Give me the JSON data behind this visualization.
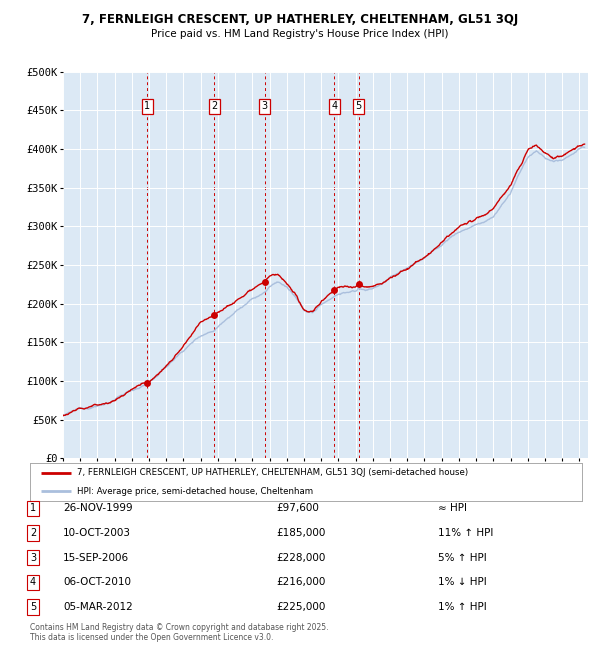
{
  "title_line1": "7, FERNLEIGH CRESCENT, UP HATHERLEY, CHELTENHAM, GL51 3QJ",
  "title_line2": "Price paid vs. HM Land Registry's House Price Index (HPI)",
  "plot_bg_color": "#dce9f5",
  "fig_bg_color": "#ffffff",
  "red_line_color": "#cc0000",
  "blue_line_color": "#aabfdd",
  "dot_color": "#cc0000",
  "vline_color": "#cc0000",
  "ylim": [
    0,
    500000
  ],
  "yticks": [
    0,
    50000,
    100000,
    150000,
    200000,
    250000,
    300000,
    350000,
    400000,
    450000,
    500000
  ],
  "ytick_labels": [
    "£0",
    "£50K",
    "£100K",
    "£150K",
    "£200K",
    "£250K",
    "£300K",
    "£350K",
    "£400K",
    "£450K",
    "£500K"
  ],
  "transactions": [
    {
      "num": 1,
      "date_num": 1999.9,
      "label": "26-NOV-1999",
      "price": 97600,
      "hpi_note": "≈ HPI"
    },
    {
      "num": 2,
      "date_num": 2003.78,
      "label": "10-OCT-2003",
      "price": 185000,
      "hpi_note": "11% ↑ HPI"
    },
    {
      "num": 3,
      "date_num": 2006.71,
      "label": "15-SEP-2006",
      "price": 228000,
      "hpi_note": "5% ↑ HPI"
    },
    {
      "num": 4,
      "date_num": 2010.76,
      "label": "06-OCT-2010",
      "price": 216000,
      "hpi_note": "1% ↓ HPI"
    },
    {
      "num": 5,
      "date_num": 2012.17,
      "label": "05-MAR-2012",
      "price": 225000,
      "hpi_note": "1% ↑ HPI"
    }
  ],
  "legend_line1": "7, FERNLEIGH CRESCENT, UP HATHERLEY, CHELTENHAM, GL51 3QJ (semi-detached house)",
  "legend_line2": "HPI: Average price, semi-detached house, Cheltenham",
  "footer_line1": "Contains HM Land Registry data © Crown copyright and database right 2025.",
  "footer_line2": "This data is licensed under the Open Government Licence v3.0.",
  "xmin": 1995.0,
  "xmax": 2025.5,
  "xticks": [
    1995,
    1996,
    1997,
    1998,
    1999,
    2000,
    2001,
    2002,
    2003,
    2004,
    2005,
    2006,
    2007,
    2008,
    2009,
    2010,
    2011,
    2012,
    2013,
    2014,
    2015,
    2016,
    2017,
    2018,
    2019,
    2020,
    2021,
    2022,
    2023,
    2024,
    2025
  ]
}
